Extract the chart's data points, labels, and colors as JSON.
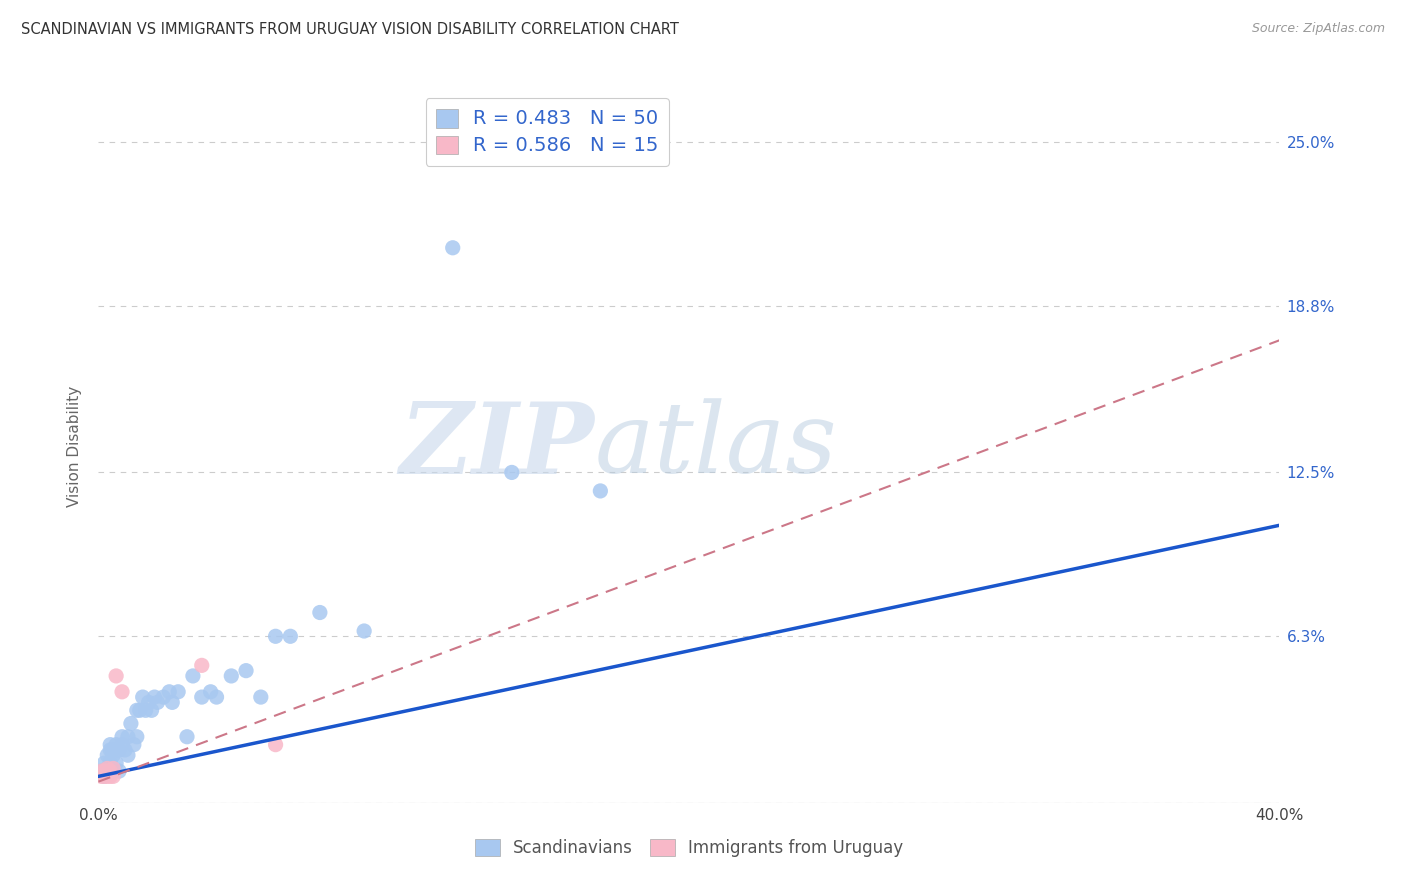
{
  "title": "SCANDINAVIAN VS IMMIGRANTS FROM URUGUAY VISION DISABILITY CORRELATION CHART",
  "source": "Source: ZipAtlas.com",
  "ylabel": "Vision Disability",
  "xlabel": "",
  "xlim": [
    0.0,
    0.4
  ],
  "ylim": [
    0.0,
    0.27
  ],
  "yticks": [
    0.0,
    0.063,
    0.125,
    0.188,
    0.25
  ],
  "ytick_labels": [
    "",
    "6.3%",
    "12.5%",
    "18.8%",
    "25.0%"
  ],
  "xticks": [
    0.0,
    0.1,
    0.2,
    0.3,
    0.4
  ],
  "xtick_labels": [
    "0.0%",
    "",
    "",
    "",
    "40.0%"
  ],
  "scandinavians_x": [
    0.001,
    0.002,
    0.002,
    0.003,
    0.003,
    0.004,
    0.004,
    0.004,
    0.005,
    0.005,
    0.005,
    0.006,
    0.006,
    0.007,
    0.007,
    0.008,
    0.008,
    0.009,
    0.01,
    0.01,
    0.011,
    0.012,
    0.013,
    0.013,
    0.014,
    0.015,
    0.016,
    0.017,
    0.018,
    0.019,
    0.02,
    0.022,
    0.024,
    0.025,
    0.027,
    0.03,
    0.032,
    0.035,
    0.038,
    0.04,
    0.045,
    0.05,
    0.055,
    0.06,
    0.065,
    0.075,
    0.09,
    0.12,
    0.14,
    0.17
  ],
  "scandinavians_y": [
    0.012,
    0.01,
    0.015,
    0.013,
    0.018,
    0.015,
    0.02,
    0.022,
    0.012,
    0.018,
    0.02,
    0.015,
    0.022,
    0.012,
    0.02,
    0.022,
    0.025,
    0.02,
    0.025,
    0.018,
    0.03,
    0.022,
    0.025,
    0.035,
    0.035,
    0.04,
    0.035,
    0.038,
    0.035,
    0.04,
    0.038,
    0.04,
    0.042,
    0.038,
    0.042,
    0.025,
    0.048,
    0.04,
    0.042,
    0.04,
    0.048,
    0.05,
    0.04,
    0.063,
    0.063,
    0.072,
    0.065,
    0.21,
    0.125,
    0.118
  ],
  "uruguay_x": [
    0.001,
    0.001,
    0.002,
    0.002,
    0.003,
    0.003,
    0.003,
    0.004,
    0.004,
    0.005,
    0.005,
    0.006,
    0.008,
    0.035,
    0.06
  ],
  "uruguay_y": [
    0.01,
    0.012,
    0.01,
    0.012,
    0.01,
    0.012,
    0.013,
    0.01,
    0.012,
    0.01,
    0.013,
    0.048,
    0.042,
    0.052,
    0.022
  ],
  "scan_R": 0.483,
  "scan_N": 50,
  "uru_R": 0.586,
  "uru_N": 15,
  "scan_color": "#a8c8f0",
  "scan_line_color": "#1a56cc",
  "uru_color": "#f8b8c8",
  "uru_line_color": "#cc7788",
  "watermark_zip": "ZIP",
  "watermark_atlas": "atlas",
  "background_color": "#ffffff",
  "grid_color": "#cccccc",
  "scan_line_x": [
    0.0,
    0.4
  ],
  "scan_line_y": [
    0.01,
    0.105
  ],
  "uru_line_x": [
    0.0,
    0.4
  ],
  "uru_line_y": [
    0.008,
    0.175
  ]
}
